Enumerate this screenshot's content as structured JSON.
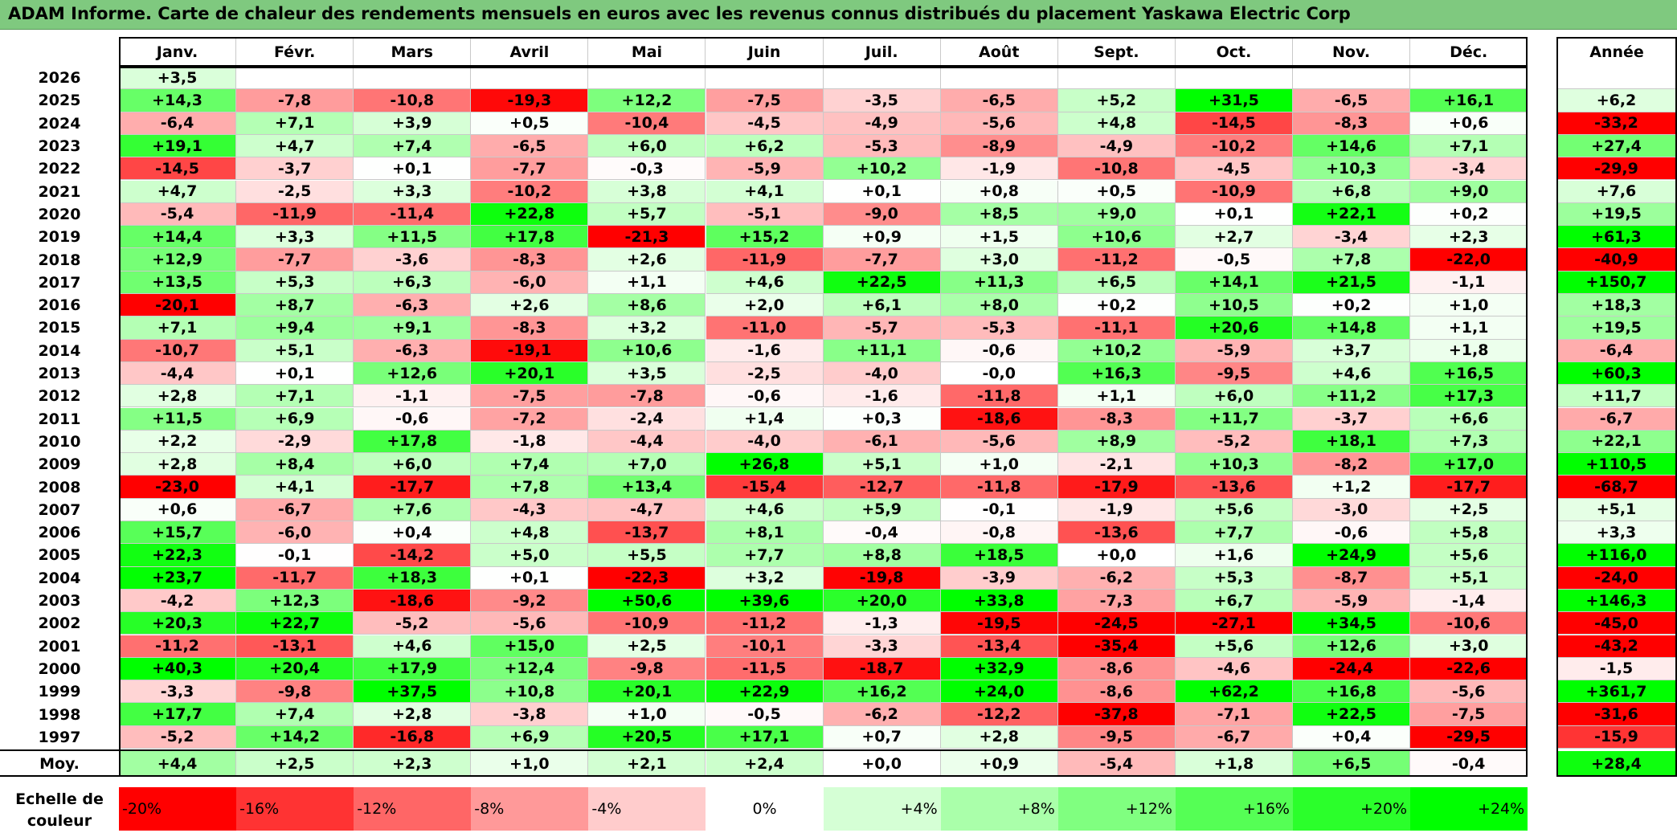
{
  "title": "ADAM Informe. Carte de chaleur des rendements mensuels en euros avec les revenus connus distribués du placement Yaskawa Electric Corp",
  "chart_data": {
    "type": "heatmap",
    "months": [
      "Janv.",
      "Févr.",
      "Mars",
      "Avril",
      "Mai",
      "Juin",
      "Juil.",
      "Août",
      "Sept.",
      "Oct.",
      "Nov.",
      "Déc."
    ],
    "annual_label": "Année",
    "average_label": "Moy.",
    "rows": [
      {
        "year": "2026",
        "values": [
          "+3,5",
          "",
          "",
          "",
          "",
          "",
          "",
          "",
          "",
          "",
          "",
          ""
        ],
        "annual": ""
      },
      {
        "year": "2025",
        "values": [
          "+14,3",
          "-7,8",
          "-10,8",
          "-19,3",
          "+12,2",
          "-7,5",
          "-3,5",
          "-6,5",
          "+5,2",
          "+31,5",
          "-6,5",
          "+16,1"
        ],
        "annual": "+6,2"
      },
      {
        "year": "2024",
        "values": [
          "-6,4",
          "+7,1",
          "+3,9",
          "+0,5",
          "-10,4",
          "-4,5",
          "-4,9",
          "-5,6",
          "+4,8",
          "-14,5",
          "-8,3",
          "+0,6"
        ],
        "annual": "-33,2"
      },
      {
        "year": "2023",
        "values": [
          "+19,1",
          "+4,7",
          "+7,4",
          "-6,5",
          "+6,0",
          "+6,2",
          "-5,3",
          "-8,9",
          "-4,9",
          "-10,2",
          "+14,6",
          "+7,1"
        ],
        "annual": "+27,4"
      },
      {
        "year": "2022",
        "values": [
          "-14,5",
          "-3,7",
          "+0,1",
          "-7,7",
          "-0,3",
          "-5,9",
          "+10,2",
          "-1,9",
          "-10,8",
          "-4,5",
          "+10,3",
          "-3,4"
        ],
        "annual": "-29,9"
      },
      {
        "year": "2021",
        "values": [
          "+4,7",
          "-2,5",
          "+3,3",
          "-10,2",
          "+3,8",
          "+4,1",
          "+0,1",
          "+0,8",
          "+0,5",
          "-10,9",
          "+6,8",
          "+9,0"
        ],
        "annual": "+7,6"
      },
      {
        "year": "2020",
        "values": [
          "-5,4",
          "-11,9",
          "-11,4",
          "+22,8",
          "+5,7",
          "-5,1",
          "-9,0",
          "+8,5",
          "+9,0",
          "+0,1",
          "+22,1",
          "+0,2"
        ],
        "annual": "+19,5"
      },
      {
        "year": "2019",
        "values": [
          "+14,4",
          "+3,3",
          "+11,5",
          "+17,8",
          "-21,3",
          "+15,2",
          "+0,9",
          "+1,5",
          "+10,6",
          "+2,7",
          "-3,4",
          "+2,3"
        ],
        "annual": "+61,3"
      },
      {
        "year": "2018",
        "values": [
          "+12,9",
          "-7,7",
          "-3,6",
          "-8,3",
          "+2,6",
          "-11,9",
          "-7,7",
          "+3,0",
          "-11,2",
          "-0,5",
          "+7,8",
          "-22,0"
        ],
        "annual": "-40,9"
      },
      {
        "year": "2017",
        "values": [
          "+13,5",
          "+5,3",
          "+6,3",
          "-6,0",
          "+1,1",
          "+4,6",
          "+22,5",
          "+11,3",
          "+6,5",
          "+14,1",
          "+21,5",
          "-1,1"
        ],
        "annual": "+150,7"
      },
      {
        "year": "2016",
        "values": [
          "-20,1",
          "+8,7",
          "-6,3",
          "+2,6",
          "+8,6",
          "+2,0",
          "+6,1",
          "+8,0",
          "+0,2",
          "+10,5",
          "+0,2",
          "+1,0"
        ],
        "annual": "+18,3"
      },
      {
        "year": "2015",
        "values": [
          "+7,1",
          "+9,4",
          "+9,1",
          "-8,3",
          "+3,2",
          "-11,0",
          "-5,7",
          "-5,3",
          "-11,1",
          "+20,6",
          "+14,8",
          "+1,1"
        ],
        "annual": "+19,5"
      },
      {
        "year": "2014",
        "values": [
          "-10,7",
          "+5,1",
          "-6,3",
          "-19,1",
          "+10,6",
          "-1,6",
          "+11,1",
          "-0,6",
          "+10,2",
          "-5,9",
          "+3,7",
          "+1,8"
        ],
        "annual": "-6,4"
      },
      {
        "year": "2013",
        "values": [
          "-4,4",
          "+0,1",
          "+12,6",
          "+20,1",
          "+3,5",
          "-2,5",
          "-4,0",
          "-0,0",
          "+16,3",
          "-9,5",
          "+4,6",
          "+16,5"
        ],
        "annual": "+60,3"
      },
      {
        "year": "2012",
        "values": [
          "+2,8",
          "+7,1",
          "-1,1",
          "-7,5",
          "-7,8",
          "-0,6",
          "-1,6",
          "-11,8",
          "+1,1",
          "+6,0",
          "+11,2",
          "+17,3"
        ],
        "annual": "+11,7"
      },
      {
        "year": "2011",
        "values": [
          "+11,5",
          "+6,9",
          "-0,6",
          "-7,2",
          "-2,4",
          "+1,4",
          "+0,3",
          "-18,6",
          "-8,3",
          "+11,7",
          "-3,7",
          "+6,6"
        ],
        "annual": "-6,7"
      },
      {
        "year": "2010",
        "values": [
          "+2,2",
          "-2,9",
          "+17,8",
          "-1,8",
          "-4,4",
          "-4,0",
          "-6,1",
          "-5,6",
          "+8,9",
          "-5,2",
          "+18,1",
          "+7,3"
        ],
        "annual": "+22,1"
      },
      {
        "year": "2009",
        "values": [
          "+2,8",
          "+8,4",
          "+6,0",
          "+7,4",
          "+7,0",
          "+26,8",
          "+5,1",
          "+1,0",
          "-2,1",
          "+10,3",
          "-8,2",
          "+17,0"
        ],
        "annual": "+110,5"
      },
      {
        "year": "2008",
        "values": [
          "-23,0",
          "+4,1",
          "-17,7",
          "+7,8",
          "+13,4",
          "-15,4",
          "-12,7",
          "-11,8",
          "-17,9",
          "-13,6",
          "+1,2",
          "-17,7"
        ],
        "annual": "-68,7"
      },
      {
        "year": "2007",
        "values": [
          "+0,6",
          "-6,7",
          "+7,6",
          "-4,3",
          "-4,7",
          "+4,6",
          "+5,9",
          "-0,1",
          "-1,9",
          "+5,6",
          "-3,0",
          "+2,5"
        ],
        "annual": "+5,1"
      },
      {
        "year": "2006",
        "values": [
          "+15,7",
          "-6,0",
          "+0,4",
          "+4,8",
          "-13,7",
          "+8,1",
          "-0,4",
          "-0,8",
          "-13,6",
          "+7,7",
          "-0,6",
          "+5,8"
        ],
        "annual": "+3,3"
      },
      {
        "year": "2005",
        "values": [
          "+22,3",
          "-0,1",
          "-14,2",
          "+5,0",
          "+5,5",
          "+7,7",
          "+8,8",
          "+18,5",
          "+0,0",
          "+1,6",
          "+24,9",
          "+5,6"
        ],
        "annual": "+116,0"
      },
      {
        "year": "2004",
        "values": [
          "+23,7",
          "-11,7",
          "+18,3",
          "+0,1",
          "-22,3",
          "+3,2",
          "-19,8",
          "-3,9",
          "-6,2",
          "+5,3",
          "-8,7",
          "+5,1"
        ],
        "annual": "-24,0"
      },
      {
        "year": "2003",
        "values": [
          "-4,2",
          "+12,3",
          "-18,6",
          "-9,2",
          "+50,6",
          "+39,6",
          "+20,0",
          "+33,8",
          "-7,3",
          "+6,7",
          "-5,9",
          "-1,4"
        ],
        "annual": "+146,3"
      },
      {
        "year": "2002",
        "values": [
          "+20,3",
          "+22,7",
          "-5,2",
          "-5,6",
          "-10,9",
          "-11,2",
          "-1,3",
          "-19,5",
          "-24,5",
          "-27,1",
          "+34,5",
          "-10,6"
        ],
        "annual": "-45,0"
      },
      {
        "year": "2001",
        "values": [
          "-11,2",
          "-13,1",
          "+4,6",
          "+15,0",
          "+2,5",
          "-10,1",
          "-3,3",
          "-13,4",
          "-35,4",
          "+5,6",
          "+12,6",
          "+3,0"
        ],
        "annual": "-43,2"
      },
      {
        "year": "2000",
        "values": [
          "+40,3",
          "+20,4",
          "+17,9",
          "+12,4",
          "-9,8",
          "-11,5",
          "-18,7",
          "+32,9",
          "-8,6",
          "-4,6",
          "-24,4",
          "-22,6"
        ],
        "annual": "-1,5"
      },
      {
        "year": "1999",
        "values": [
          "-3,3",
          "-9,8",
          "+37,5",
          "+10,8",
          "+20,1",
          "+22,9",
          "+16,2",
          "+24,0",
          "-8,6",
          "+62,2",
          "+16,8",
          "-5,6"
        ],
        "annual": "+361,7"
      },
      {
        "year": "1998",
        "values": [
          "+17,7",
          "+7,4",
          "+2,8",
          "-3,8",
          "+1,0",
          "-0,5",
          "-6,2",
          "-12,2",
          "-37,8",
          "-7,1",
          "+22,5",
          "-7,5"
        ],
        "annual": "-31,6"
      },
      {
        "year": "1997",
        "values": [
          "-5,2",
          "+14,2",
          "-16,8",
          "+6,9",
          "+20,5",
          "+17,1",
          "+0,7",
          "+2,8",
          "-9,5",
          "-6,7",
          "+0,4",
          "-29,5"
        ],
        "annual": "-15,9"
      }
    ],
    "average": {
      "values": [
        "+4,4",
        "+2,5",
        "+2,3",
        "+1,0",
        "+2,1",
        "+2,4",
        "+0,0",
        "+0,9",
        "-5,4",
        "+1,8",
        "+6,5",
        "-0,4"
      ],
      "annual": "+28,4"
    },
    "scale_label": "Echelle de couleur",
    "scale_values": [
      -20,
      -16,
      -12,
      -8,
      -4,
      0,
      4,
      8,
      12,
      16,
      20,
      24
    ],
    "scale_labels": [
      "-20%",
      "-16%",
      "-12%",
      "-8%",
      "-4%",
      "0%",
      "+4%",
      "+8%",
      "+12%",
      "+16%",
      "+20%",
      "+24%"
    ],
    "colors": {
      "neg_max": "#ff0000",
      "neutral": "#ffffff",
      "pos_max": "#00ff00",
      "header_bg": "#7fc97f"
    }
  }
}
